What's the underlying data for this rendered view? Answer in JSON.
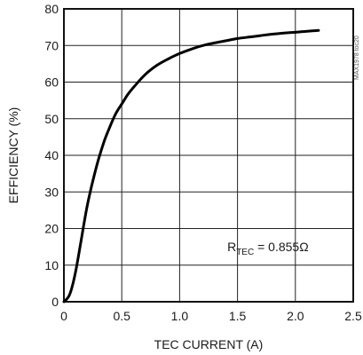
{
  "chart_data": {
    "type": "line",
    "xlabel": "TEC CURRENT (A)",
    "ylabel": "EFFICIENCY (%)",
    "xlim": [
      0,
      2.5
    ],
    "ylim": [
      0,
      80
    ],
    "x_ticks": [
      "0",
      "0.5",
      "1.0",
      "1.5",
      "2.0",
      "2.5"
    ],
    "y_ticks": [
      "0",
      "10",
      "20",
      "30",
      "40",
      "50",
      "60",
      "70",
      "80"
    ],
    "grid": true,
    "annotation": {
      "prefix": "R",
      "subscript": "TEC",
      "suffix": " = 0.855Ω",
      "x": 1.45,
      "y": 15
    },
    "side_note": "MAX1978 toc20",
    "series": [
      {
        "x": [
          0,
          0.05,
          0.1,
          0.15,
          0.2,
          0.25,
          0.3,
          0.35,
          0.4,
          0.45,
          0.5,
          0.55,
          0.6,
          0.7,
          0.8,
          0.9,
          1.0,
          1.1,
          1.2,
          1.3,
          1.4,
          1.5,
          1.6,
          1.7,
          1.8,
          1.9,
          2.0,
          2.1,
          2.2
        ],
        "y": [
          0,
          2,
          8,
          17,
          26,
          33,
          39,
          44,
          48,
          51.5,
          54,
          56.5,
          58.5,
          62,
          64.5,
          66.3,
          67.8,
          69,
          70,
          70.7,
          71.3,
          71.9,
          72.3,
          72.7,
          73.1,
          73.4,
          73.6,
          73.9,
          74.1
        ]
      }
    ]
  }
}
